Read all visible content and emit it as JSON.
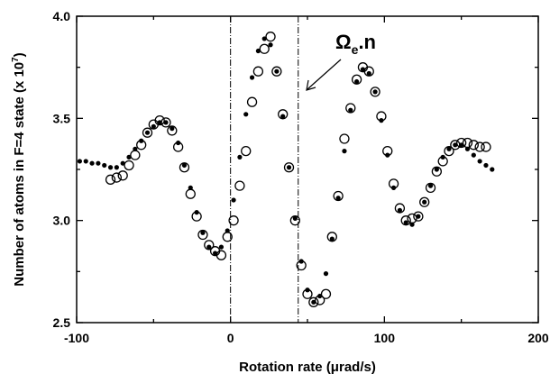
{
  "chart_data": {
    "type": "scatter",
    "xlabel": "Rotation rate (μrad/s)",
    "ylabel_main": "Number of atoms in F=4 state (x 10",
    "ylabel_exp": "7",
    "ylabel_close": ")",
    "xlim": [
      -100,
      200
    ],
    "ylim": [
      2.5,
      4.0
    ],
    "x_ticks": [
      -100,
      0,
      100,
      200
    ],
    "x_tick_labels": [
      "-100",
      "0",
      "100",
      "200"
    ],
    "y_ticks": [
      2.5,
      3.0,
      3.5,
      4.0
    ],
    "y_tick_labels": [
      "2.5",
      "3.0",
      "3.5",
      "4.0"
    ],
    "grid": false,
    "vertical_lines": [
      0,
      44
    ],
    "annotation": {
      "symbol": "Ω",
      "subscript": "e",
      "suffix": ".n",
      "arrow_target": [
        44,
        3.75
      ]
    },
    "series": [
      {
        "marker": "filled-dots",
        "x": [
          -98,
          -94,
          -90,
          -86,
          -82,
          -78,
          -74,
          -70,
          -66,
          -62,
          -58,
          -54,
          -50,
          -46,
          -42,
          -38,
          -34,
          -30,
          -26,
          -22,
          -18,
          -14,
          -10,
          -6,
          -2,
          2,
          6,
          10,
          14,
          18,
          22,
          26,
          30,
          34,
          38,
          42,
          46,
          50,
          54,
          58,
          62,
          66,
          70,
          74,
          78,
          82,
          86,
          90,
          94,
          98,
          102,
          106,
          110,
          114,
          118,
          122,
          126,
          130,
          134,
          138,
          142,
          146,
          150,
          154,
          158,
          162,
          166,
          170
        ],
        "y": [
          3.29,
          3.29,
          3.28,
          3.28,
          3.27,
          3.26,
          3.26,
          3.28,
          3.31,
          3.35,
          3.39,
          3.43,
          3.46,
          3.48,
          3.48,
          3.45,
          3.38,
          3.27,
          3.16,
          3.04,
          2.94,
          2.87,
          2.84,
          2.87,
          2.95,
          3.1,
          3.31,
          3.52,
          3.7,
          3.83,
          3.89,
          3.86,
          3.73,
          3.51,
          3.26,
          3.01,
          2.8,
          2.66,
          2.6,
          2.63,
          2.74,
          2.91,
          3.11,
          3.34,
          3.54,
          3.68,
          3.74,
          3.72,
          3.63,
          3.49,
          3.32,
          3.16,
          3.05,
          2.99,
          2.98,
          3.02,
          3.09,
          3.17,
          3.25,
          3.31,
          3.35,
          3.37,
          3.37,
          3.35,
          3.32,
          3.29,
          3.27,
          3.25
        ]
      },
      {
        "marker": "open-circles",
        "x": [
          -78,
          -74,
          -70,
          -66,
          -62,
          -58,
          -54,
          -50,
          -46,
          -42,
          -38,
          -34,
          -30,
          -26,
          -22,
          -18,
          -14,
          -10,
          -6,
          -2,
          2,
          6,
          10,
          14,
          18,
          22,
          26,
          30,
          34,
          38,
          42,
          46,
          50,
          54,
          58,
          62,
          66,
          70,
          74,
          78,
          82,
          86,
          90,
          94,
          98,
          102,
          106,
          110,
          114,
          118,
          122,
          126,
          130,
          134,
          138,
          142,
          146,
          150,
          154,
          158,
          162,
          166
        ],
        "y": [
          3.2,
          3.21,
          3.22,
          3.27,
          3.32,
          3.37,
          3.43,
          3.47,
          3.49,
          3.48,
          3.44,
          3.36,
          3.26,
          3.13,
          3.02,
          2.93,
          2.88,
          2.85,
          2.83,
          2.92,
          3.0,
          3.17,
          3.34,
          3.58,
          3.73,
          3.84,
          3.9,
          3.73,
          3.52,
          3.26,
          3.0,
          2.78,
          2.64,
          2.6,
          2.61,
          2.64,
          2.92,
          3.12,
          3.4,
          3.55,
          3.69,
          3.75,
          3.73,
          3.63,
          3.51,
          3.34,
          3.18,
          3.06,
          3.0,
          3.01,
          3.02,
          3.09,
          3.16,
          3.24,
          3.29,
          3.34,
          3.37,
          3.38,
          3.38,
          3.37,
          3.36,
          3.36
        ]
      }
    ]
  }
}
